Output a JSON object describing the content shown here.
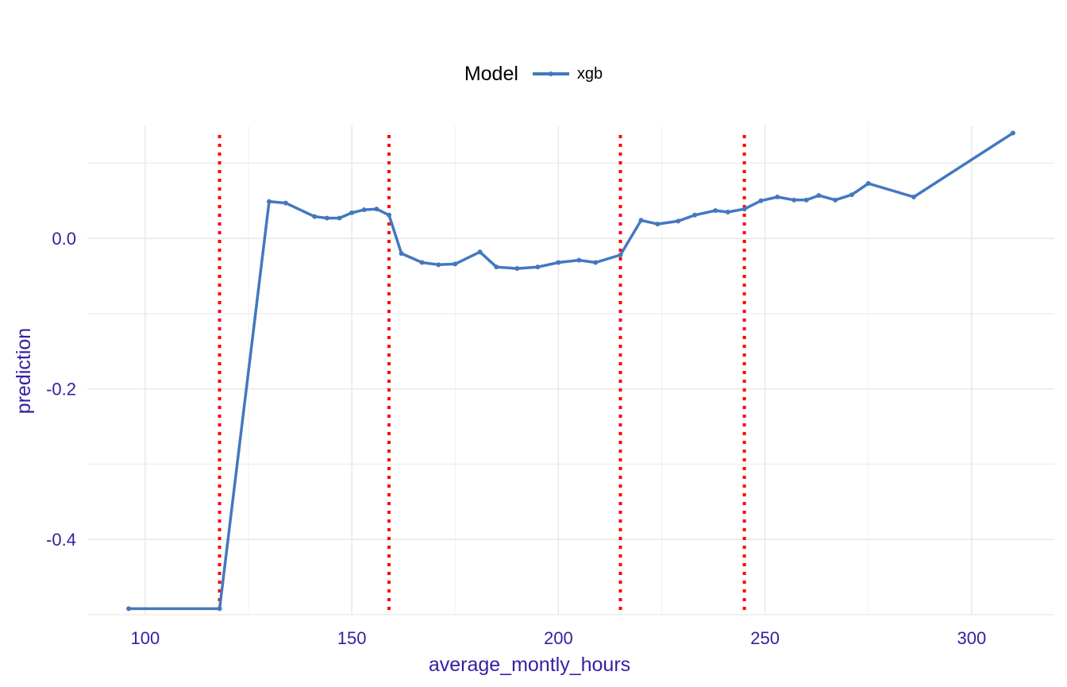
{
  "legend": {
    "title": "Model",
    "label": "xgb"
  },
  "colors": {
    "series": "#4378bf",
    "cut_line": "#ff0000",
    "axis_text": "#371ea3",
    "grid": "#e6e6e6"
  },
  "chart_data": {
    "type": "line",
    "xlabel": "average_montly_hours",
    "ylabel": "prediction",
    "xlim": [
      86,
      320
    ],
    "ylim": [
      -0.5,
      0.15
    ],
    "x_ticks": [
      100,
      150,
      200,
      250,
      300
    ],
    "y_ticks": [
      0.0,
      -0.2,
      -0.4
    ],
    "y_tick_labels": [
      "0.0",
      "-0.2",
      "-0.4"
    ],
    "grid": true,
    "legend_position": "top",
    "vertical_lines": [
      118,
      159,
      215,
      245
    ],
    "series": [
      {
        "name": "xgb",
        "x": [
          96,
          118,
          130,
          134,
          141,
          144,
          147,
          150,
          153,
          156,
          159,
          162,
          167,
          171,
          175,
          181,
          185,
          190,
          195,
          200,
          205,
          209,
          215,
          220,
          224,
          229,
          233,
          238,
          241,
          245,
          249,
          253,
          257,
          260,
          263,
          267,
          271,
          275,
          286,
          310
        ],
        "y": [
          -0.492,
          -0.492,
          0.049,
          0.047,
          0.029,
          0.027,
          0.027,
          0.034,
          0.038,
          0.039,
          0.031,
          -0.02,
          -0.032,
          -0.035,
          -0.034,
          -0.018,
          -0.038,
          -0.04,
          -0.038,
          -0.032,
          -0.029,
          -0.032,
          -0.022,
          0.024,
          0.019,
          0.023,
          0.031,
          0.037,
          0.035,
          0.039,
          0.05,
          0.055,
          0.051,
          0.051,
          0.057,
          0.051,
          0.058,
          0.073,
          0.055,
          0.14
        ]
      }
    ]
  }
}
